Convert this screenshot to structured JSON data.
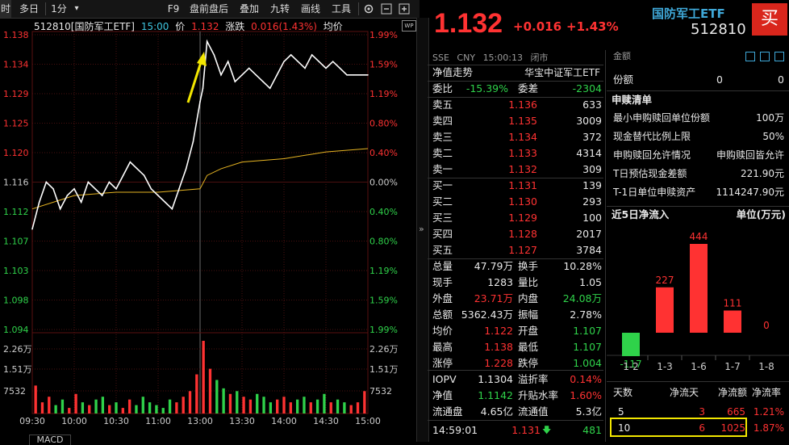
{
  "toolbar": {
    "items": [
      "时",
      "多日",
      "1分",
      "▾",
      "F9",
      "盘前盘后",
      "叠加",
      "九转",
      "画线",
      "工具"
    ]
  },
  "chart_header": {
    "code_name": "512810[国防军工ETF]",
    "time": "15:00",
    "price_label": "价",
    "price": "1.132",
    "change_label": "涨跌",
    "change": "0.016(1.43%)",
    "avg_label": "均价",
    "wp": "WP"
  },
  "chart_data": {
    "type": "line",
    "x_ticks": [
      "09:30",
      "10:00",
      "10:30",
      "11:00",
      "13:00",
      "13:30",
      "14:00",
      "14:30",
      "15:00"
    ],
    "y_price_ticks": [
      "1.138",
      "1.134",
      "1.129",
      "1.125",
      "1.120",
      "1.116",
      "1.112",
      "1.107",
      "1.103",
      "1.098",
      "1.094"
    ],
    "y_pct_ticks": [
      "1.99%",
      "1.59%",
      "1.19%",
      "0.80%",
      "0.40%",
      "0.00%",
      "0.40%",
      "0.80%",
      "1.19%",
      "1.59%",
      "1.99%"
    ],
    "volume_ticks": [
      "2.26万",
      "1.51万",
      "7532"
    ],
    "volume_pct_ticks": [
      "2.26万",
      "1.51万",
      "7532"
    ],
    "ylim": [
      1.094,
      1.138
    ],
    "prev_close": 1.116,
    "series": [
      {
        "x": [
          0,
          5,
          10,
          15,
          20,
          25,
          30,
          35,
          40,
          45,
          50,
          55,
          60,
          65,
          70,
          75,
          80,
          85,
          90,
          95,
          100,
          105,
          110,
          115,
          120,
          122,
          125,
          130,
          135,
          140,
          145,
          150,
          155,
          160,
          165,
          170,
          175,
          180,
          185,
          190,
          195,
          200,
          205,
          210,
          215,
          220,
          225,
          230,
          235,
          240
        ],
        "values": [
          1.109,
          1.113,
          1.116,
          1.115,
          1.112,
          1.114,
          1.115,
          1.113,
          1.116,
          1.115,
          1.114,
          1.116,
          1.115,
          1.117,
          1.119,
          1.118,
          1.117,
          1.115,
          1.114,
          1.113,
          1.112,
          1.115,
          1.118,
          1.122,
          1.128,
          1.13,
          1.137,
          1.135,
          1.132,
          1.134,
          1.131,
          1.132,
          1.133,
          1.132,
          1.131,
          1.13,
          1.132,
          1.134,
          1.135,
          1.134,
          1.133,
          1.135,
          1.134,
          1.133,
          1.134,
          1.133,
          1.132,
          1.132,
          1.132,
          1.132
        ]
      },
      {
        "x": [
          0,
          30,
          60,
          90,
          120,
          125,
          135,
          150,
          180,
          210,
          240
        ],
        "values": [
          1.112,
          1.114,
          1.1145,
          1.1145,
          1.115,
          1.117,
          1.118,
          1.119,
          1.1195,
          1.1205,
          1.121
        ]
      }
    ],
    "volume_bars": [
      10,
      4,
      6,
      3,
      5,
      2,
      7,
      4,
      3,
      5,
      6,
      3,
      4,
      2,
      5,
      3,
      6,
      4,
      3,
      2,
      5,
      4,
      6,
      8,
      14,
      26,
      16,
      12,
      9,
      7,
      8,
      6,
      5,
      7,
      6,
      4,
      5,
      6,
      4,
      5,
      6,
      4,
      5,
      7,
      4,
      5,
      4,
      3,
      4,
      8
    ]
  },
  "indicator_tab": "MACD",
  "quote": {
    "price": "1.132",
    "change": "+0.016",
    "change_pct": "+1.43%",
    "name": "国防军工ETF",
    "code": "512810",
    "buy_button": "买",
    "market": "SSE",
    "currency": "CNY",
    "time": "15:00:13",
    "status": "闭市",
    "nav_trend": "净值走势",
    "fund_name": "华宝中证军工ETF"
  },
  "orderbook": {
    "weibi_label": "委比",
    "weibi": "-15.39%",
    "weicha_label": "委差",
    "weicha": "-2304",
    "asks": [
      {
        "label": "卖五",
        "price": "1.136",
        "vol": "633"
      },
      {
        "label": "卖四",
        "price": "1.135",
        "vol": "3009"
      },
      {
        "label": "卖三",
        "price": "1.134",
        "vol": "372"
      },
      {
        "label": "卖二",
        "price": "1.133",
        "vol": "4314"
      },
      {
        "label": "卖一",
        "price": "1.132",
        "vol": "309"
      }
    ],
    "bids": [
      {
        "label": "买一",
        "price": "1.131",
        "vol": "139"
      },
      {
        "label": "买二",
        "price": "1.130",
        "vol": "293"
      },
      {
        "label": "买三",
        "price": "1.129",
        "vol": "100"
      },
      {
        "label": "买四",
        "price": "1.128",
        "vol": "2017"
      },
      {
        "label": "买五",
        "price": "1.127",
        "vol": "3784"
      }
    ]
  },
  "stats": [
    {
      "l1": "总量",
      "v1": "47.79万",
      "c1": "white",
      "l2": "换手",
      "v2": "10.28%",
      "c2": "white"
    },
    {
      "l1": "现手",
      "v1": "1283",
      "c1": "white",
      "l2": "量比",
      "v2": "1.05",
      "c2": "white"
    },
    {
      "l1": "外盘",
      "v1": "23.71万",
      "c1": "red",
      "l2": "内盘",
      "v2": "24.08万",
      "c2": "green"
    },
    {
      "l1": "总额",
      "v1": "5362.43万",
      "c1": "white",
      "l2": "振幅",
      "v2": "2.78%",
      "c2": "white"
    },
    {
      "l1": "均价",
      "v1": "1.122",
      "c1": "red",
      "l2": "开盘",
      "v2": "1.107",
      "c2": "green"
    },
    {
      "l1": "最高",
      "v1": "1.138",
      "c1": "red",
      "l2": "最低",
      "v2": "1.107",
      "c2": "green"
    },
    {
      "l1": "涨停",
      "v1": "1.228",
      "c1": "red",
      "l2": "跌停",
      "v2": "1.004",
      "c2": "green"
    }
  ],
  "stats2": [
    {
      "l1": "IOPV",
      "v1": "1.1304",
      "c1": "white",
      "l2": "溢折率",
      "v2": "0.14%",
      "c2": "red"
    },
    {
      "l1": "净值",
      "v1": "1.1142",
      "c1": "green",
      "l2": "升贴水率",
      "v2": "1.60%",
      "c2": "red"
    },
    {
      "l1": "流通盘",
      "v1": "4.65亿",
      "c1": "white",
      "l2": "流通值",
      "v2": "5.3亿",
      "c2": "white"
    }
  ],
  "last_trade": {
    "time": "14:59:01",
    "price": "1.131",
    "vol": "481"
  },
  "far_right": {
    "top_row_label": "金额",
    "fen_e_label": "份额",
    "fen_e_v1": "0",
    "fen_e_v2": "0",
    "redeem_title": "申赎清单",
    "redeem_rows": [
      {
        "label": "最小申购赎回单位份额",
        "value": "100万"
      },
      {
        "label": "现金替代比例上限",
        "value": "50%"
      },
      {
        "label": "申购赎回允许情况",
        "value": "申购赎回皆允许"
      },
      {
        "label": "T日预估现金差额",
        "value": "221.90元"
      },
      {
        "label": "T-1日单位申赎资产",
        "value": "1114247.90元"
      }
    ],
    "inflow_title": "近5日净流入",
    "inflow_unit": "单位(万元)",
    "inflow_chart": {
      "categories": [
        "1-2",
        "1-3",
        "1-6",
        "1-7",
        "1-8"
      ],
      "values": [
        -117,
        227,
        444,
        111,
        0
      ]
    },
    "flow_table_headers": [
      "天数",
      "净流天",
      "净流额",
      "净流率"
    ],
    "flow_rows": [
      {
        "days": "5",
        "net_days": "3",
        "amount": "665",
        "rate": "1.21%"
      },
      {
        "days": "10",
        "net_days": "6",
        "amount": "1025",
        "rate": "1.87%"
      }
    ]
  },
  "colors": {
    "up": "#ff3232",
    "down": "#2fd24a",
    "price_line": "#ffffff",
    "avg_line": "#e6b422",
    "annotation": "#f2e600"
  }
}
